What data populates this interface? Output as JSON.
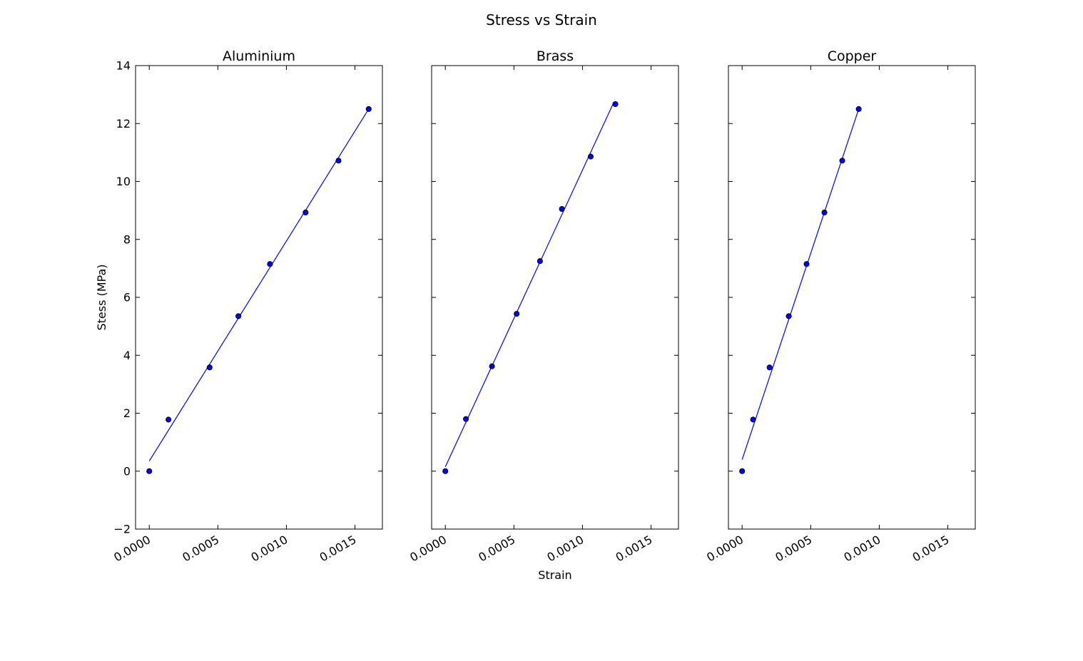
{
  "figure_title": "Stress vs Strain",
  "shared_ylabel": "Stess (MPa)",
  "shared_xlabel": "Strain",
  "colors": {
    "series": "#0000ff",
    "marker_edge": "#000000",
    "frame": "#000000"
  },
  "chart_data": [
    {
      "type": "scatter",
      "title": "Aluminium",
      "xlim": [
        -0.0001,
        0.0017
      ],
      "ylim": [
        -2,
        14
      ],
      "xticks": [
        "0.0000",
        "0.0005",
        "0.0010",
        "0.0015"
      ],
      "yticks": [
        "−2",
        "0",
        "2",
        "4",
        "6",
        "8",
        "10",
        "12",
        "14"
      ],
      "grid": false,
      "points": [
        {
          "x": 0.0,
          "y": 0.0
        },
        {
          "x": 0.00014,
          "y": 1.78
        },
        {
          "x": 0.00044,
          "y": 3.58
        },
        {
          "x": 0.00065,
          "y": 5.35
        },
        {
          "x": 0.00088,
          "y": 7.15
        },
        {
          "x": 0.00114,
          "y": 8.93
        },
        {
          "x": 0.00138,
          "y": 10.72
        },
        {
          "x": 0.0016,
          "y": 12.5
        }
      ],
      "fit_line": {
        "x": [
          0.0,
          0.0016
        ],
        "y": [
          0.35,
          12.5
        ]
      }
    },
    {
      "type": "scatter",
      "title": "Brass",
      "xlim": [
        -0.0001,
        0.0017
      ],
      "ylim": [
        -2,
        14
      ],
      "xticks": [
        "0.0000",
        "0.0005",
        "0.0010",
        "0.0015"
      ],
      "yticks": [],
      "grid": false,
      "points": [
        {
          "x": 0.0,
          "y": 0.0
        },
        {
          "x": 0.00015,
          "y": 1.8
        },
        {
          "x": 0.00034,
          "y": 3.62
        },
        {
          "x": 0.00052,
          "y": 5.43
        },
        {
          "x": 0.00069,
          "y": 7.25
        },
        {
          "x": 0.00085,
          "y": 9.05
        },
        {
          "x": 0.00106,
          "y": 10.86
        },
        {
          "x": 0.00124,
          "y": 12.67
        }
      ],
      "fit_line": {
        "x": [
          0.0,
          0.00123
        ],
        "y": [
          0.15,
          12.75
        ]
      }
    },
    {
      "type": "scatter",
      "title": "Copper",
      "xlim": [
        -0.0001,
        0.0017
      ],
      "ylim": [
        -2,
        14
      ],
      "xticks": [
        "0.0000",
        "0.0005",
        "0.0010",
        "0.0015"
      ],
      "yticks": [],
      "grid": false,
      "points": [
        {
          "x": 0.0,
          "y": 0.0
        },
        {
          "x": 8e-05,
          "y": 1.78
        },
        {
          "x": 0.0002,
          "y": 3.58
        },
        {
          "x": 0.00034,
          "y": 5.35
        },
        {
          "x": 0.00047,
          "y": 7.15
        },
        {
          "x": 0.0006,
          "y": 8.93
        },
        {
          "x": 0.00073,
          "y": 10.72
        },
        {
          "x": 0.00085,
          "y": 12.5
        }
      ],
      "fit_line": {
        "x": [
          0.0,
          0.00085
        ],
        "y": [
          0.4,
          12.5
        ]
      }
    }
  ]
}
